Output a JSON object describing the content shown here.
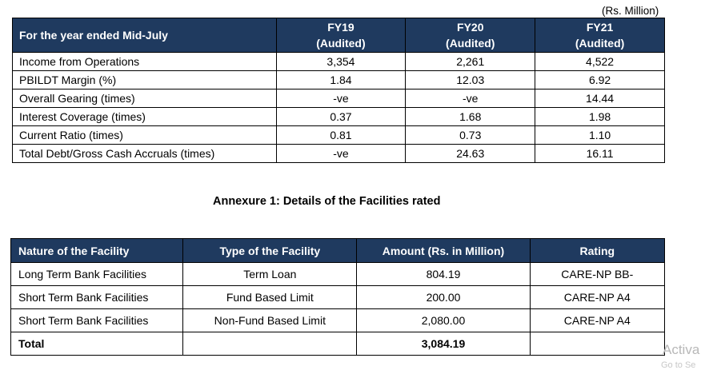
{
  "units_note": "(Rs. Million)",
  "financials": {
    "header_label": "For the year ended Mid-July",
    "years": [
      {
        "fy": "FY19",
        "status": "(Audited)"
      },
      {
        "fy": "FY20",
        "status": "(Audited)"
      },
      {
        "fy": "FY21",
        "status": "(Audited)"
      }
    ],
    "rows": [
      {
        "label": "Income from Operations",
        "values": [
          "3,354",
          "2,261",
          "4,522"
        ]
      },
      {
        "label": "PBILDT Margin (%)",
        "values": [
          "1.84",
          "12.03",
          "6.92"
        ]
      },
      {
        "label": "Overall Gearing (times)",
        "values": [
          "-ve",
          "-ve",
          "14.44"
        ]
      },
      {
        "label": "Interest Coverage (times)",
        "values": [
          "0.37",
          "1.68",
          "1.98"
        ]
      },
      {
        "label": "Current Ratio (times)",
        "values": [
          "0.81",
          "0.73",
          "1.10"
        ]
      },
      {
        "label": "Total Debt/Gross Cash Accruals (times)",
        "values": [
          "-ve",
          "24.63",
          "16.11"
        ]
      }
    ]
  },
  "annexure_title": "Annexure 1: Details of the Facilities rated",
  "facilities": {
    "headers": [
      "Nature of the Facility",
      "Type of the Facility",
      "Amount (Rs. in Million)",
      "Rating"
    ],
    "rows": [
      [
        "Long Term Bank Facilities",
        "Term Loan",
        "804.19",
        "CARE-NP BB-"
      ],
      [
        "Short Term Bank Facilities",
        "Fund Based Limit",
        "200.00",
        "CARE-NP A4"
      ],
      [
        "Short Term Bank Facilities",
        "Non-Fund Based Limit",
        "2,080.00",
        "CARE-NP A4"
      ]
    ],
    "total": {
      "label": "Total",
      "amount": "3,084.19"
    }
  },
  "watermark": {
    "line1": "Activa",
    "line2": "Go to Se"
  }
}
